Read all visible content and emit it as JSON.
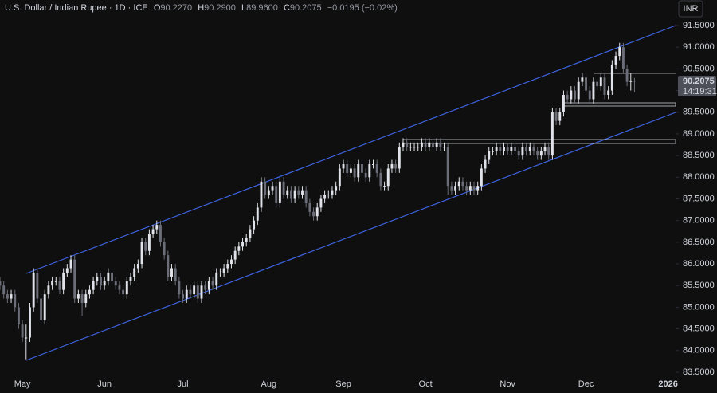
{
  "chart_data": {
    "type": "candlestick",
    "title": "U.S. Dollar / Indian Rupee · 1D · ICE",
    "ohlc_legend": [
      {
        "label": "O",
        "value": "90.2270"
      },
      {
        "label": "H",
        "value": "90.2900"
      },
      {
        "label": "L",
        "value": "89.9600"
      },
      {
        "label": "C",
        "value": "90.2075"
      }
    ],
    "change": "−0.0195 (−0.02%)",
    "currency": "INR",
    "last_price_label": "90.2075",
    "countdown": "14:19:31",
    "up_color": "#e1e3ea",
    "down_color": "#6b6e78",
    "open": [
      85.6,
      85.5,
      85.3,
      85.2,
      85.3,
      85.0,
      84.6,
      84.3,
      84.3,
      85.0,
      85.8,
      85.2,
      84.7,
      85.3,
      85.5,
      85.6,
      85.6,
      85.4,
      85.8,
      85.9,
      86.1,
      85.2,
      85.3,
      85.1,
      85.3,
      85.4,
      85.6,
      85.7,
      85.5,
      85.6,
      85.8,
      85.6,
      85.5,
      85.4,
      85.3,
      85.6,
      85.7,
      85.9,
      86.0,
      86.5,
      86.3,
      86.7,
      86.8,
      86.9,
      86.5,
      86.2,
      85.7,
      85.9,
      85.6,
      85.3,
      85.2,
      85.4,
      85.3,
      85.5,
      85.2,
      85.5,
      85.4,
      85.6,
      85.5,
      85.8,
      85.8,
      85.9,
      86.0,
      86.1,
      86.3,
      86.4,
      86.5,
      86.6,
      86.8,
      87.0,
      87.3,
      87.9,
      87.6,
      87.7,
      87.8,
      87.4,
      87.9,
      87.6,
      87.7,
      87.5,
      87.7,
      87.6,
      87.7,
      87.4,
      87.2,
      87.1,
      87.3,
      87.5,
      87.6,
      87.6,
      87.7,
      87.8,
      88.2,
      88.3,
      88.1,
      88.2,
      88.0,
      88.3,
      88.1,
      88.0,
      88.3,
      88.3,
      88.1,
      87.8,
      87.8,
      88.2,
      88.3,
      88.2,
      88.7,
      88.8,
      88.7,
      88.7,
      88.7,
      88.7,
      88.8,
      88.7,
      88.8,
      88.7,
      88.8,
      88.7,
      88.7,
      87.8,
      87.7,
      87.8,
      87.9,
      87.8,
      87.7,
      87.8,
      87.7,
      87.8,
      88.2,
      88.4,
      88.6,
      88.6,
      88.7,
      88.6,
      88.7,
      88.6,
      88.7,
      88.6,
      88.5,
      88.7,
      88.6,
      88.7,
      88.6,
      88.5,
      88.6,
      88.7,
      88.5,
      89.5,
      89.3,
      89.5,
      89.9,
      89.8,
      90.0,
      89.8,
      90.2,
      90.3,
      90.0,
      89.8,
      90.2,
      90.1,
      90.3,
      89.9,
      90.0,
      90.6,
      90.8,
      91.0,
      90.5,
      90.2,
      90.227
    ],
    "high": [
      85.7,
      85.6,
      85.4,
      85.4,
      85.4,
      85.1,
      84.7,
      84.6,
      85.1,
      85.9,
      85.9,
      85.3,
      85.4,
      85.6,
      85.7,
      85.7,
      85.7,
      85.9,
      86.0,
      86.2,
      86.2,
      85.4,
      85.4,
      85.4,
      85.5,
      85.7,
      85.8,
      85.8,
      85.7,
      85.9,
      85.9,
      85.7,
      85.6,
      85.5,
      85.7,
      85.8,
      86.0,
      86.1,
      86.6,
      86.6,
      86.8,
      86.9,
      87.0,
      87.0,
      86.6,
      86.3,
      86.0,
      86.0,
      85.7,
      85.4,
      85.5,
      85.5,
      85.6,
      85.6,
      85.6,
      85.6,
      85.7,
      85.7,
      85.9,
      85.9,
      86.0,
      86.1,
      86.2,
      86.4,
      86.5,
      86.6,
      86.7,
      86.9,
      87.1,
      87.4,
      88.0,
      88.0,
      87.8,
      87.9,
      87.9,
      88.0,
      88.0,
      87.8,
      87.8,
      87.8,
      87.8,
      87.8,
      87.8,
      87.5,
      87.3,
      87.4,
      87.6,
      87.7,
      87.7,
      87.8,
      87.9,
      88.3,
      88.4,
      88.4,
      88.3,
      88.3,
      88.4,
      88.4,
      88.2,
      88.4,
      88.4,
      88.4,
      88.2,
      87.9,
      88.3,
      88.4,
      88.4,
      88.8,
      88.9,
      88.9,
      88.8,
      88.8,
      88.8,
      88.9,
      88.9,
      88.9,
      88.9,
      88.9,
      88.9,
      88.8,
      88.8,
      87.9,
      87.9,
      88.0,
      88.0,
      87.9,
      87.9,
      87.9,
      87.9,
      88.3,
      88.5,
      88.7,
      88.7,
      88.8,
      88.8,
      88.8,
      88.8,
      88.8,
      88.8,
      88.7,
      88.8,
      88.8,
      88.8,
      88.8,
      88.7,
      88.7,
      88.8,
      88.8,
      89.6,
      89.6,
      89.6,
      90.0,
      90.0,
      90.1,
      90.1,
      90.3,
      90.4,
      90.4,
      90.1,
      90.3,
      90.2,
      90.4,
      90.4,
      90.1,
      90.7,
      90.9,
      91.1,
      91.1,
      90.6,
      90.4,
      90.29
    ],
    "low": [
      85.4,
      85.2,
      85.1,
      85.1,
      84.9,
      84.5,
      84.2,
      83.8,
      84.2,
      84.9,
      85.1,
      84.6,
      84.6,
      85.2,
      85.4,
      85.5,
      85.3,
      85.3,
      85.7,
      85.8,
      85.1,
      85.1,
      84.8,
      85.0,
      85.2,
      85.3,
      85.5,
      85.4,
      85.4,
      85.5,
      85.5,
      85.4,
      85.3,
      85.2,
      85.2,
      85.5,
      85.6,
      85.8,
      85.9,
      86.2,
      86.2,
      86.6,
      86.7,
      86.4,
      86.1,
      85.6,
      85.6,
      85.5,
      85.2,
      85.1,
      85.1,
      85.2,
      85.2,
      85.1,
      85.1,
      85.3,
      85.3,
      85.4,
      85.4,
      85.7,
      85.7,
      85.8,
      85.9,
      86.0,
      86.2,
      86.3,
      86.4,
      86.5,
      86.7,
      86.9,
      87.2,
      87.5,
      87.5,
      87.6,
      87.3,
      87.3,
      87.5,
      87.5,
      87.4,
      87.4,
      87.5,
      87.5,
      87.3,
      87.1,
      87.0,
      87.0,
      87.2,
      87.4,
      87.5,
      87.5,
      87.6,
      87.7,
      88.1,
      88.0,
      88.0,
      87.9,
      87.9,
      88.0,
      87.9,
      87.9,
      88.2,
      88.0,
      87.7,
      87.7,
      87.7,
      88.1,
      88.1,
      88.1,
      88.6,
      88.6,
      88.6,
      88.6,
      88.6,
      88.6,
      88.6,
      88.6,
      88.6,
      88.6,
      88.6,
      88.6,
      87.6,
      87.6,
      87.6,
      87.7,
      87.7,
      87.6,
      87.6,
      87.6,
      87.6,
      87.7,
      88.1,
      88.3,
      88.5,
      88.5,
      88.5,
      88.5,
      88.5,
      88.5,
      88.5,
      88.4,
      88.4,
      88.5,
      88.5,
      88.5,
      88.4,
      88.4,
      88.5,
      88.4,
      88.4,
      89.2,
      89.2,
      89.4,
      89.7,
      89.7,
      89.7,
      89.7,
      90.1,
      89.9,
      89.7,
      89.7,
      90.0,
      90.0,
      89.8,
      89.8,
      89.9,
      90.5,
      90.7,
      90.4,
      90.1,
      90.0,
      89.96
    ],
    "close": [
      85.5,
      85.3,
      85.2,
      85.3,
      85.0,
      84.6,
      84.3,
      84.3,
      85.0,
      85.8,
      85.2,
      84.7,
      85.3,
      85.5,
      85.6,
      85.6,
      85.4,
      85.8,
      85.9,
      86.1,
      85.2,
      85.3,
      85.1,
      85.3,
      85.4,
      85.6,
      85.7,
      85.5,
      85.6,
      85.8,
      85.6,
      85.5,
      85.4,
      85.3,
      85.6,
      85.7,
      85.9,
      86.0,
      86.5,
      86.3,
      86.7,
      86.8,
      86.9,
      86.5,
      86.2,
      85.7,
      85.9,
      85.6,
      85.3,
      85.2,
      85.4,
      85.3,
      85.5,
      85.2,
      85.5,
      85.4,
      85.6,
      85.5,
      85.8,
      85.8,
      85.9,
      86.0,
      86.1,
      86.3,
      86.4,
      86.5,
      86.6,
      86.8,
      87.0,
      87.3,
      87.9,
      87.6,
      87.7,
      87.8,
      87.4,
      87.9,
      87.6,
      87.7,
      87.5,
      87.7,
      87.6,
      87.7,
      87.4,
      87.2,
      87.1,
      87.3,
      87.5,
      87.6,
      87.6,
      87.7,
      87.8,
      88.2,
      88.3,
      88.1,
      88.2,
      88.0,
      88.3,
      88.1,
      88.0,
      88.3,
      88.3,
      88.1,
      87.8,
      87.8,
      88.2,
      88.3,
      88.2,
      88.7,
      88.8,
      88.7,
      88.7,
      88.7,
      88.7,
      88.8,
      88.7,
      88.8,
      88.7,
      88.8,
      88.7,
      88.7,
      87.8,
      87.7,
      87.8,
      87.9,
      87.8,
      87.7,
      87.8,
      87.7,
      87.8,
      88.2,
      88.4,
      88.6,
      88.6,
      88.7,
      88.6,
      88.7,
      88.6,
      88.7,
      88.6,
      88.5,
      88.7,
      88.6,
      88.7,
      88.6,
      88.5,
      88.6,
      88.7,
      88.5,
      89.5,
      89.3,
      89.5,
      89.9,
      89.8,
      90.0,
      89.8,
      90.2,
      90.3,
      90.0,
      89.8,
      90.2,
      90.1,
      90.3,
      89.9,
      90.0,
      90.6,
      90.8,
      91.0,
      90.5,
      90.2,
      90.227,
      90.2075
    ],
    "xlim": [
      0,
      181
    ],
    "xticks": [
      {
        "value": 6,
        "label": "May"
      },
      {
        "value": 28,
        "label": "Jun"
      },
      {
        "value": 49,
        "label": "Jul"
      },
      {
        "value": 72,
        "label": "Aug"
      },
      {
        "value": 92,
        "label": "Sep"
      },
      {
        "value": 114,
        "label": "Oct"
      },
      {
        "value": 136,
        "label": "Nov"
      },
      {
        "value": 157,
        "label": "Dec"
      },
      {
        "value": 179,
        "label": "2026"
      }
    ],
    "ylim": [
      83.5,
      91.5
    ],
    "yticks": [
      {
        "value": 91.5,
        "label": "91.5000"
      },
      {
        "value": 91,
        "label": "91.0000"
      },
      {
        "value": 90.5,
        "label": "90.5000"
      },
      {
        "value": 90,
        "label": "90.0000"
      },
      {
        "value": 89.5,
        "label": "89.5000"
      },
      {
        "value": 89,
        "label": "89.0000"
      },
      {
        "value": 88.5,
        "label": "88.5000"
      },
      {
        "value": 88,
        "label": "88.0000"
      },
      {
        "value": 87.5,
        "label": "87.5000"
      },
      {
        "value": 87,
        "label": "87.0000"
      },
      {
        "value": 86.5,
        "label": "86.5000"
      },
      {
        "value": 86,
        "label": "86.0000"
      },
      {
        "value": 85.5,
        "label": "85.5000"
      },
      {
        "value": 85,
        "label": "85.0000"
      },
      {
        "value": 84.5,
        "label": "84.5000"
      },
      {
        "value": 84,
        "label": "84.0000"
      },
      {
        "value": 83.5,
        "label": "83.5000"
      }
    ],
    "grid": false
  }
}
